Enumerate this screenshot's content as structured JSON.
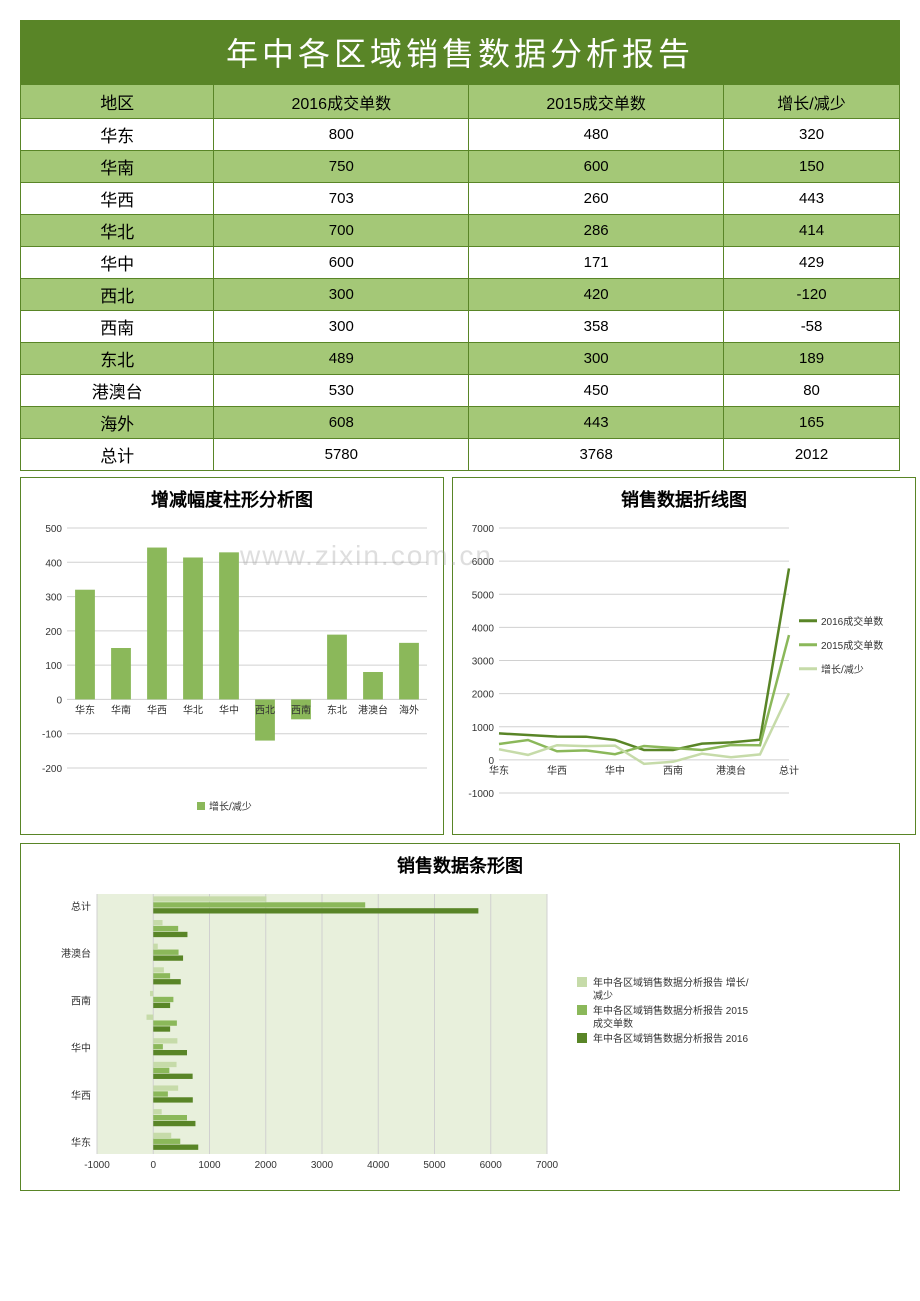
{
  "title": "年中各区域销售数据分析报告",
  "table": {
    "columns": [
      "地区",
      "2016成交单数",
      "2015成交单数",
      "增长/减少"
    ],
    "rows": [
      [
        "华东",
        800,
        480,
        320
      ],
      [
        "华南",
        750,
        600,
        150
      ],
      [
        "华西",
        703,
        260,
        443
      ],
      [
        "华北",
        700,
        286,
        414
      ],
      [
        "华中",
        600,
        171,
        429
      ],
      [
        "西北",
        300,
        420,
        -120
      ],
      [
        "西南",
        300,
        358,
        -58
      ],
      [
        "东北",
        489,
        300,
        189
      ],
      [
        "港澳台",
        530,
        450,
        80
      ],
      [
        "海外",
        608,
        443,
        165
      ],
      [
        "总计",
        5780,
        3768,
        2012
      ]
    ],
    "header_bg": "#a4c877",
    "row_even_bg": "#a4c877",
    "row_odd_bg": "#ffffff",
    "border_color": "#598527",
    "title_bg": "#598527",
    "title_color": "#ffffff"
  },
  "bar_chart": {
    "title": "增减幅度柱形分析图",
    "type": "bar",
    "categories": [
      "华东",
      "华南",
      "华西",
      "华北",
      "华中",
      "西北",
      "西南",
      "东北",
      "港澳台",
      "海外"
    ],
    "values": [
      320,
      150,
      443,
      414,
      429,
      -120,
      -58,
      189,
      80,
      165
    ],
    "bar_color": "#8bb85a",
    "ylim": [
      -200,
      500
    ],
    "ytick_step": 100,
    "grid_color": "#d0d0d0",
    "legend_label": "增长/减少",
    "legend_color": "#8bb85a",
    "title_fontsize": 18,
    "label_fontsize": 10
  },
  "line_chart": {
    "title": "销售数据折线图",
    "type": "line",
    "categories": [
      "华东",
      "华西",
      "华中",
      "西南",
      "港澳台",
      "总计"
    ],
    "full_categories": [
      "华东",
      "华南",
      "华西",
      "华北",
      "华中",
      "西北",
      "西南",
      "东北",
      "港澳台",
      "海外",
      "总计"
    ],
    "series": [
      {
        "name": "2016成交单数",
        "color": "#598527",
        "width": 2.5,
        "values": [
          800,
          750,
          703,
          700,
          600,
          300,
          300,
          489,
          530,
          608,
          5780
        ]
      },
      {
        "name": "2015成交单数",
        "color": "#8bb85a",
        "width": 2.5,
        "values": [
          480,
          600,
          260,
          286,
          171,
          420,
          358,
          300,
          450,
          443,
          3768
        ]
      },
      {
        "name": "增长/减少",
        "color": "#c6dba9",
        "width": 2.5,
        "values": [
          320,
          150,
          443,
          414,
          429,
          -120,
          -58,
          189,
          80,
          165,
          2012
        ]
      }
    ],
    "ylim": [
      -1000,
      7000
    ],
    "ytick_step": 1000,
    "grid_color": "#d0d0d0",
    "title_fontsize": 18,
    "label_fontsize": 10
  },
  "hbar_chart": {
    "title": "销售数据条形图",
    "type": "horizontal_bar",
    "y_labels_shown": [
      "华东",
      "华西",
      "华中",
      "西南",
      "港澳台",
      "总计"
    ],
    "full_categories": [
      "华东",
      "华南",
      "华西",
      "华北",
      "华中",
      "西北",
      "西南",
      "东北",
      "港澳台",
      "海外",
      "总计"
    ],
    "series": [
      {
        "name": "年中各区域销售数据分析报告 增长/减少",
        "color": "#c6dba9",
        "values": [
          320,
          150,
          443,
          414,
          429,
          -120,
          -58,
          189,
          80,
          165,
          2012
        ]
      },
      {
        "name": "年中各区域销售数据分析报告 2015成交单数",
        "color": "#8bb85a",
        "values": [
          480,
          600,
          260,
          286,
          171,
          420,
          358,
          300,
          450,
          443,
          3768
        ]
      },
      {
        "name": "年中各区域销售数据分析报告 2016成交单数",
        "color": "#598527",
        "values": [
          800,
          750,
          703,
          700,
          600,
          300,
          300,
          489,
          530,
          608,
          5780
        ]
      }
    ],
    "xlim": [
      -1000,
      7000
    ],
    "xtick_step": 1000,
    "grid_color": "#d0d0d0",
    "plot_bg": "#e8f0dc",
    "title_fontsize": 18,
    "label_fontsize": 10,
    "legend_labels": [
      "年中各区域销售数据分析报告 增长/",
      "减少",
      "年中各区域销售数据分析报告 2015",
      "成交单数",
      "年中各区域销售数据分析报告 2016"
    ]
  },
  "watermark": "www.zixin.com.cn"
}
